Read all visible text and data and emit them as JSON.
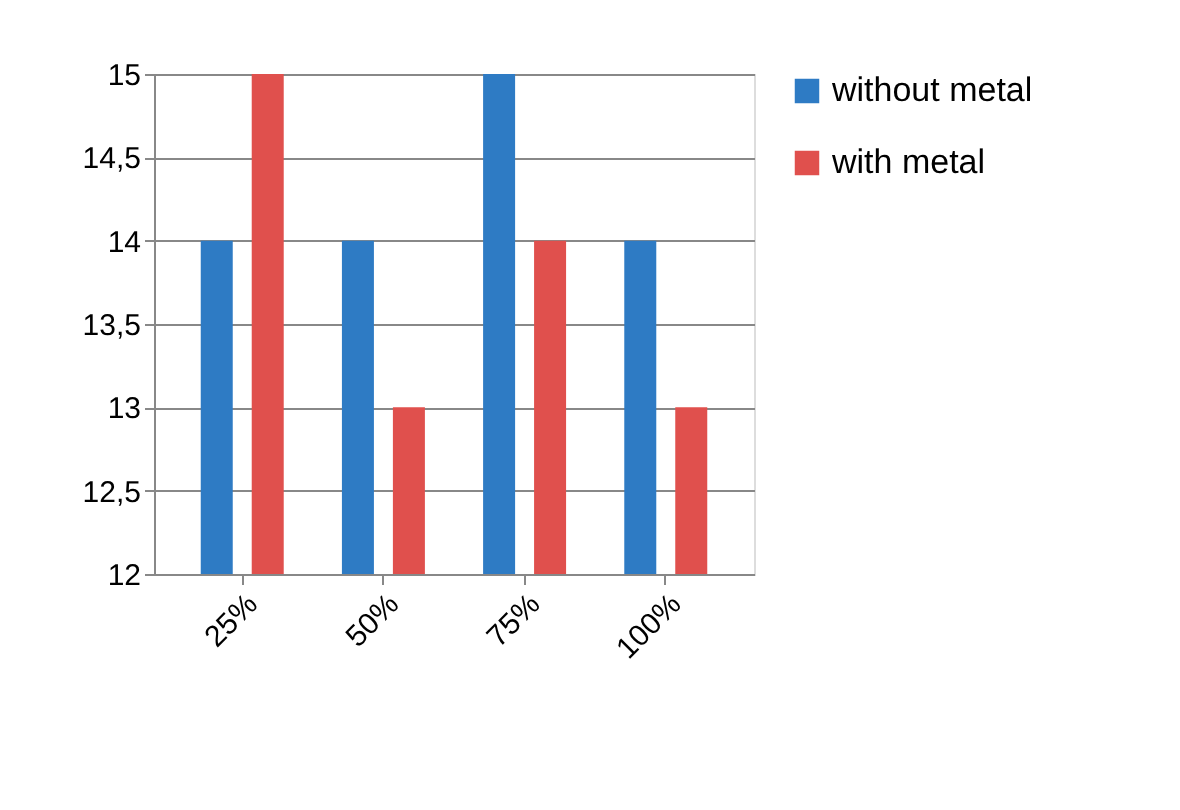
{
  "chart_data": {
    "type": "bar",
    "categories": [
      "25%",
      "50%",
      "75%",
      "100%"
    ],
    "series": [
      {
        "name": "without metal",
        "color": "#2e7bc4",
        "values": [
          14,
          14,
          15,
          14
        ]
      },
      {
        "name": "with metal",
        "color": "#e0504d",
        "values": [
          15,
          13,
          14,
          13
        ]
      }
    ],
    "ylim": [
      12,
      15
    ],
    "yticks": [
      12,
      {
        "value": 12.5,
        "label": "12,5"
      },
      13,
      {
        "value": 13.5,
        "label": "13,5"
      },
      14,
      {
        "value": 14.5,
        "label": "14,5"
      },
      15
    ],
    "grid": "y",
    "legend": "right"
  }
}
